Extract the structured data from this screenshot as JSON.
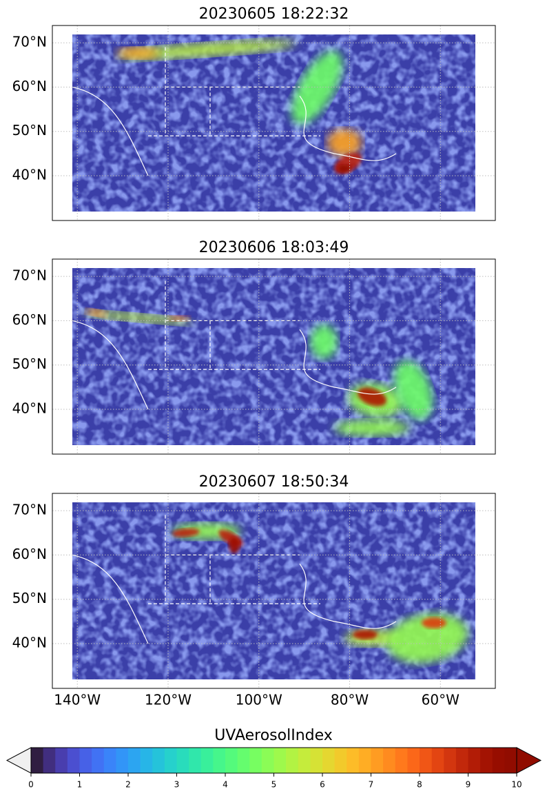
{
  "chart_data": {
    "type": "map",
    "panels": [
      {
        "title": "20230605 18:22:32"
      },
      {
        "title": "20230606 18:03:49"
      },
      {
        "title": "20230607 18:50:34"
      }
    ],
    "xlim": [
      -145.5,
      -47.9
    ],
    "ylim": [
      29.9,
      73.9
    ],
    "xticks": [
      {
        "value": -140,
        "label": "140°W"
      },
      {
        "value": -120,
        "label": "120°W"
      },
      {
        "value": -100,
        "label": "100°W"
      },
      {
        "value": -80,
        "label": "80°W"
      },
      {
        "value": -60,
        "label": "60°W"
      }
    ],
    "yticks": [
      {
        "value": 40,
        "label": "40°N"
      },
      {
        "value": 50,
        "label": "50°N"
      },
      {
        "value": 60,
        "label": "60°N"
      },
      {
        "value": 70,
        "label": "70°N"
      }
    ],
    "grid": true,
    "colorbar": {
      "label": "UVAerosolIndex",
      "cmap": "turbo",
      "extend": "both",
      "clim": [
        0,
        10
      ],
      "ticks": [
        0,
        1,
        2,
        3,
        4,
        5,
        6,
        7,
        8,
        9,
        10
      ]
    }
  }
}
